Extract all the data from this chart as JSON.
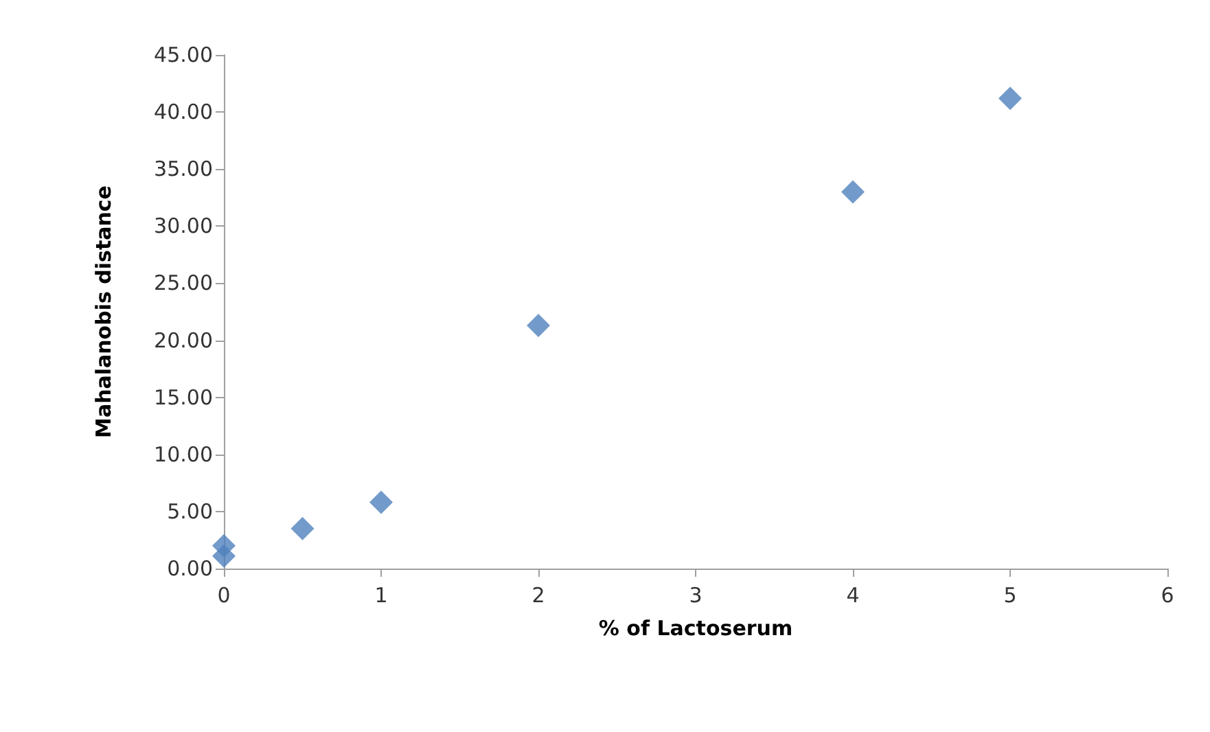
{
  "chart_data": {
    "type": "scatter",
    "xlabel": "% of Lactoserum",
    "ylabel": "Mahalanobis distance",
    "x": [
      0,
      0,
      0.5,
      1,
      2,
      4,
      5
    ],
    "series": [
      {
        "color": "#4f81bd",
        "values": [
          1.1,
          2.0,
          3.5,
          5.8,
          21.3,
          33.0,
          41.2
        ]
      }
    ],
    "xlim": [
      0,
      6
    ],
    "xticks": [
      0,
      1,
      2,
      3,
      4,
      5,
      6
    ],
    "ylim": [
      0,
      45
    ],
    "yticks": [
      {
        "value": 0,
        "label": "0.00"
      },
      {
        "value": 5,
        "label": "5.00"
      },
      {
        "value": 10,
        "label": "10.00"
      },
      {
        "value": 15,
        "label": "15.00"
      },
      {
        "value": 20,
        "label": "20.00"
      },
      {
        "value": 25,
        "label": "25.00"
      },
      {
        "value": 30,
        "label": "30.00"
      },
      {
        "value": 35,
        "label": "35.00"
      },
      {
        "value": 40,
        "label": "40.00"
      },
      {
        "value": 45,
        "label": "45.00"
      }
    ],
    "grid": false,
    "marker": "diamond"
  }
}
